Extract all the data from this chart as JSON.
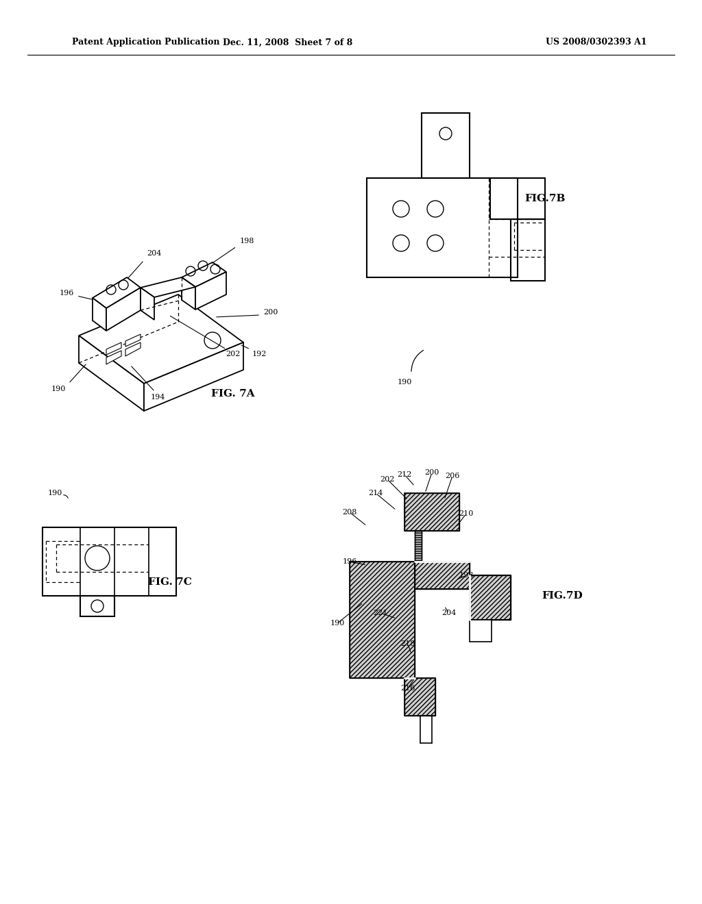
{
  "background_color": "#ffffff",
  "header_left": "Patent Application Publication",
  "header_mid": "Dec. 11, 2008  Sheet 7 of 8",
  "header_right": "US 2008/0302393 A1"
}
